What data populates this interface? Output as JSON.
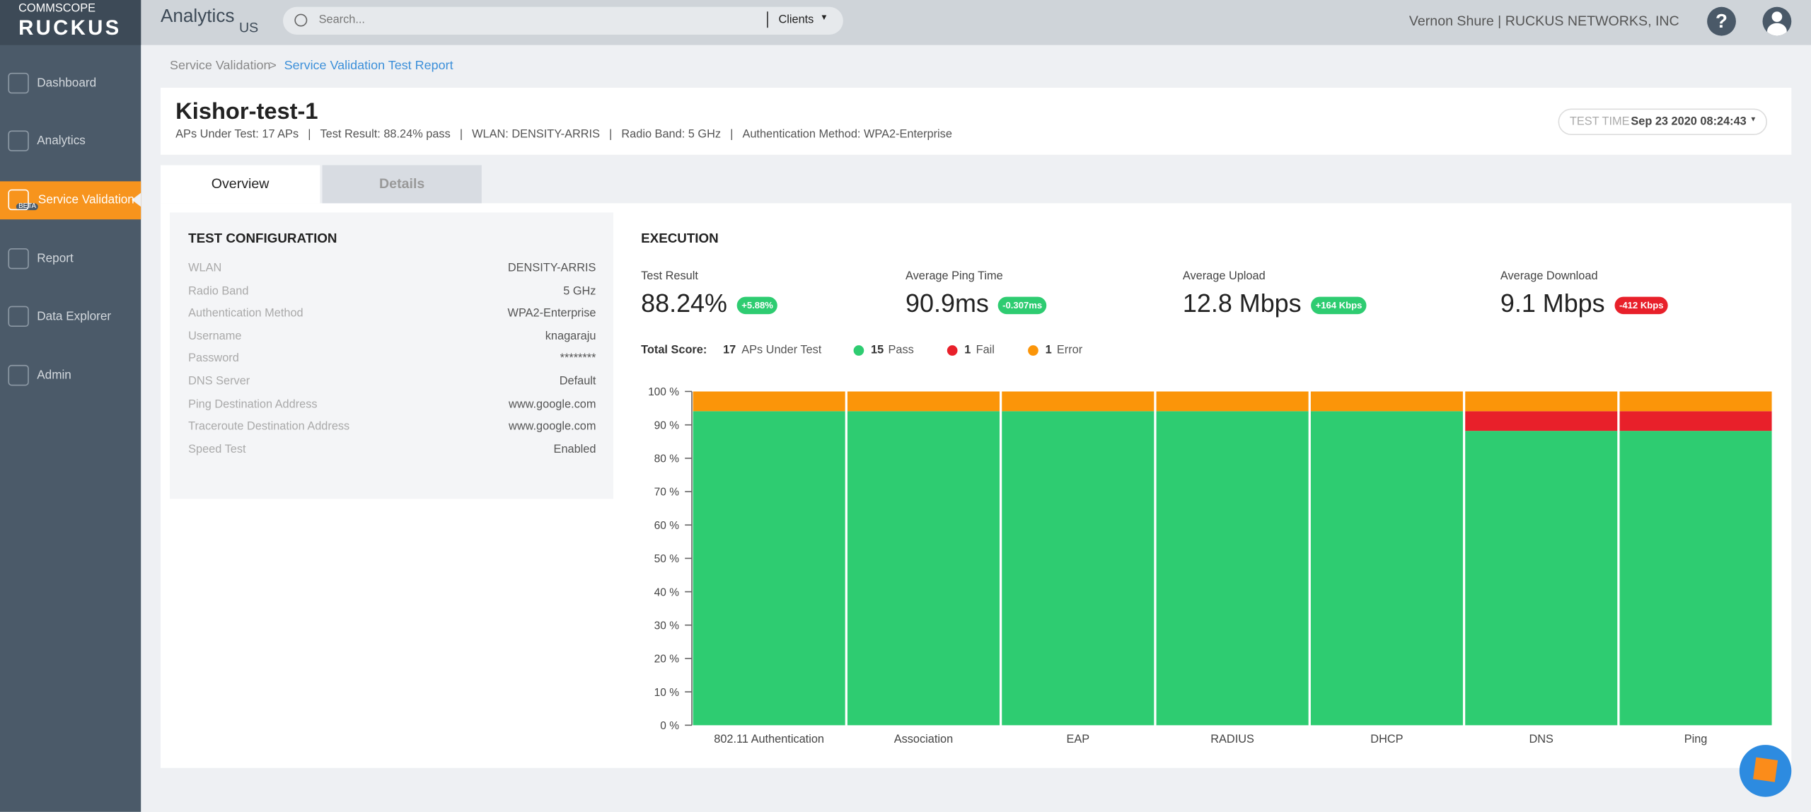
{
  "header": {
    "brand_top": "COMMSCOPE",
    "brand": "RUCKUS",
    "app": "Analytics",
    "region": "US",
    "search_placeholder": "Search...",
    "search_scope": "Clients",
    "user": "Vernon Shure | RUCKUS NETWORKS, INC"
  },
  "sidebar": {
    "items": [
      "Dashboard",
      "Analytics",
      "Service Validation",
      "Report",
      "Data Explorer",
      "Admin"
    ],
    "active": 2,
    "beta": "BETA"
  },
  "breadcrumb": {
    "items": [
      "Service Validation",
      "Service Validation Test Report"
    ],
    "separator": ">"
  },
  "report": {
    "title": "Kishor-test-1",
    "meta": [
      "APs Under Test: 17 APs",
      "Test Result: 88.24% pass",
      "WLAN: DENSITY-ARRIS",
      "Radio Band: 5 GHz",
      "Authentication Method: WPA2-Enterprise"
    ],
    "test_time_label": "TEST TIME",
    "test_time": "Sep 23 2020 08:24:43"
  },
  "tabs": {
    "items": [
      "Overview",
      "Details"
    ],
    "active": 0
  },
  "config": {
    "title": "TEST CONFIGURATION",
    "rows": [
      [
        "WLAN",
        "DENSITY-ARRIS"
      ],
      [
        "Radio Band",
        "5 GHz"
      ],
      [
        "Authentication Method",
        "WPA2-Enterprise"
      ],
      [
        "Username",
        "knagaraju"
      ],
      [
        "Password",
        "********"
      ],
      [
        "DNS Server",
        "Default"
      ],
      [
        "Ping Destination Address",
        "www.google.com"
      ],
      [
        "Traceroute Destination Address",
        "www.google.com"
      ],
      [
        "Speed Test",
        "Enabled"
      ]
    ]
  },
  "execution": {
    "title": "EXECUTION",
    "metrics": [
      {
        "label": "Test Result",
        "value": "88.24%",
        "delta": "+5.88%",
        "delta_color": "#2ecc71"
      },
      {
        "label": "Average Ping Time",
        "value": "90.9ms",
        "delta": "-0.307ms",
        "delta_color": "#2ecc71"
      },
      {
        "label": "Average Upload",
        "value": "12.8 Mbps",
        "delta": "+164 Kbps",
        "delta_color": "#2ecc71"
      },
      {
        "label": "Average Download",
        "value": "9.1 Mbps",
        "delta": "-412 Kbps",
        "delta_color": "#e8202a"
      }
    ],
    "total_label": "Total Score:",
    "aps_count": 17,
    "aps_label": "APs Under Test",
    "legend_counts": [
      15,
      1,
      1
    ]
  },
  "chart_data": {
    "type": "stacked_bar",
    "categories": [
      "802.11 Authentication",
      "Association",
      "EAP",
      "RADIUS",
      "DHCP",
      "DNS",
      "Ping"
    ],
    "series": [
      {
        "name": "Pass",
        "color": "#2ecc71",
        "values": [
          94.1,
          94.1,
          94.1,
          94.1,
          94.1,
          88.2,
          88.2
        ]
      },
      {
        "name": "Fail",
        "color": "#e8202a",
        "values": [
          0,
          0,
          0,
          0,
          0,
          5.9,
          5.9
        ]
      },
      {
        "name": "Error",
        "color": "#fb9509",
        "values": [
          5.9,
          5.9,
          5.9,
          5.9,
          5.9,
          5.9,
          5.9
        ]
      }
    ],
    "ylim": [
      0,
      100
    ],
    "yticks": [
      {
        "value": 0,
        "label": "0 %"
      },
      {
        "value": 10,
        "label": "10 %"
      },
      {
        "value": 20,
        "label": "20 %"
      },
      {
        "value": 30,
        "label": "30 %"
      },
      {
        "value": 40,
        "label": "40 %"
      },
      {
        "value": 50,
        "label": "50 %"
      },
      {
        "value": 60,
        "label": "60 %"
      },
      {
        "value": 70,
        "label": "70 %"
      },
      {
        "value": 80,
        "label": "80 %"
      },
      {
        "value": 90,
        "label": "90 %"
      },
      {
        "value": 100,
        "label": "100 %"
      }
    ]
  }
}
